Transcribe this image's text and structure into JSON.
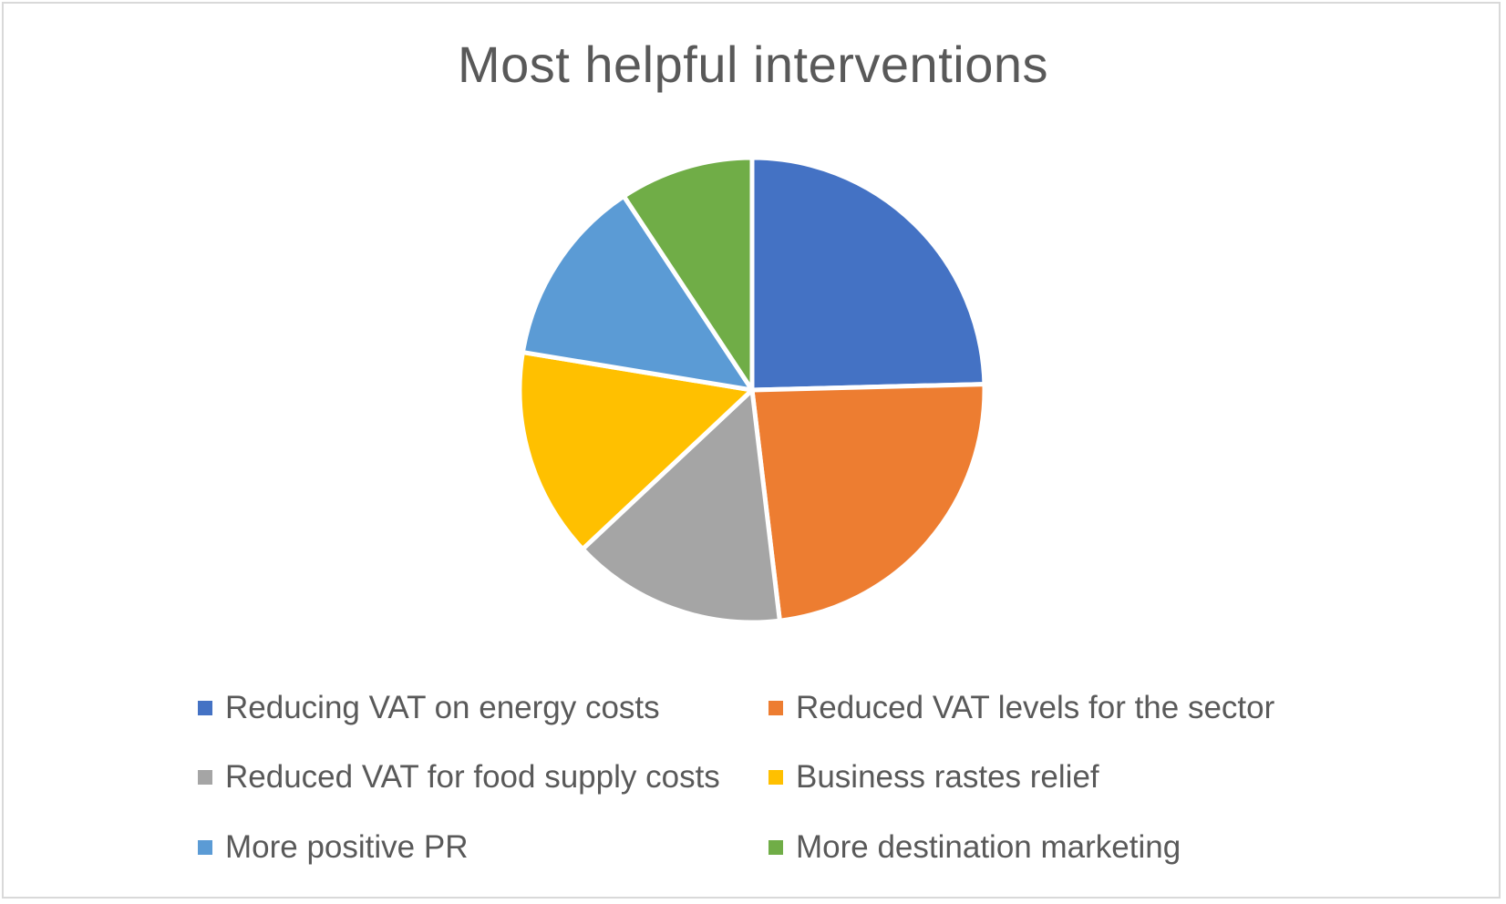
{
  "chart_data": {
    "type": "pie",
    "title": "Most helpful interventions",
    "legend_position": "bottom",
    "categories": [
      "Reducing VAT on energy costs",
      "Reduced VAT levels for the sector",
      "Reduced VAT for food supply costs",
      "Business rastes relief",
      "More positive PR",
      "More destination marketing"
    ],
    "values": [
      24.6,
      23.5,
      14.9,
      14.6,
      13.1,
      9.3
    ],
    "unit": "percent of total (estimated)",
    "colors": [
      "#4472C4",
      "#ED7D31",
      "#A5A5A5",
      "#FFC000",
      "#5B9BD5",
      "#70AD47"
    ],
    "start_angle_deg": 0,
    "direction": "clockwise"
  }
}
